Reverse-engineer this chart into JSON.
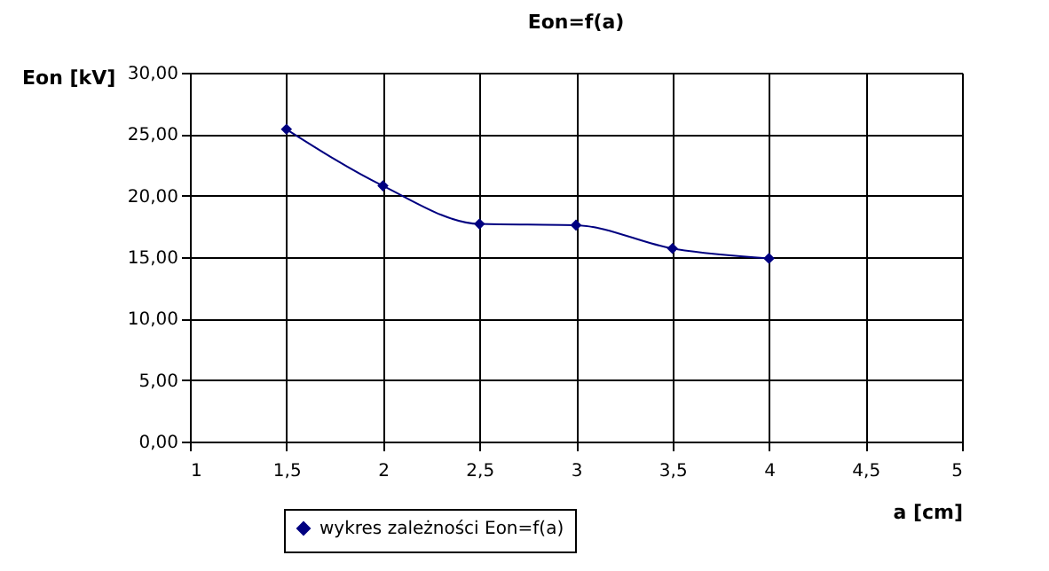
{
  "chart_data": {
    "type": "line",
    "title": "Eon=f(a)",
    "xlabel": "a [cm]",
    "ylabel": "Eon [kV]",
    "x": [
      1.5,
      2,
      2.5,
      3,
      3.5,
      4
    ],
    "series": [
      {
        "name": "wykres zależności Eon=f(a)",
        "color": "#000080",
        "values": [
          25.4,
          20.8,
          17.7,
          17.6,
          15.7,
          14.9
        ]
      }
    ],
    "xlim": [
      1,
      5
    ],
    "xticks": [
      1,
      {
        "value": 1.5,
        "label": "1,5"
      },
      2,
      {
        "value": 2.5,
        "label": "2,5"
      },
      3,
      {
        "value": 3.5,
        "label": "3,5"
      },
      4,
      {
        "value": 4.5,
        "label": "4,5"
      },
      5
    ],
    "ylim": [
      0,
      30
    ],
    "yticks": [
      {
        "value": 0,
        "label": "0,00"
      },
      {
        "value": 5,
        "label": "5,00"
      },
      {
        "value": 10,
        "label": "10,00"
      },
      {
        "value": 15,
        "label": "15,00"
      },
      {
        "value": 20,
        "label": "20,00"
      },
      {
        "value": 25,
        "label": "25,00"
      },
      {
        "value": 30,
        "label": "30,00"
      }
    ],
    "grid": true,
    "legend": "bottom left",
    "marker": "diamond",
    "line_style": "solid"
  }
}
